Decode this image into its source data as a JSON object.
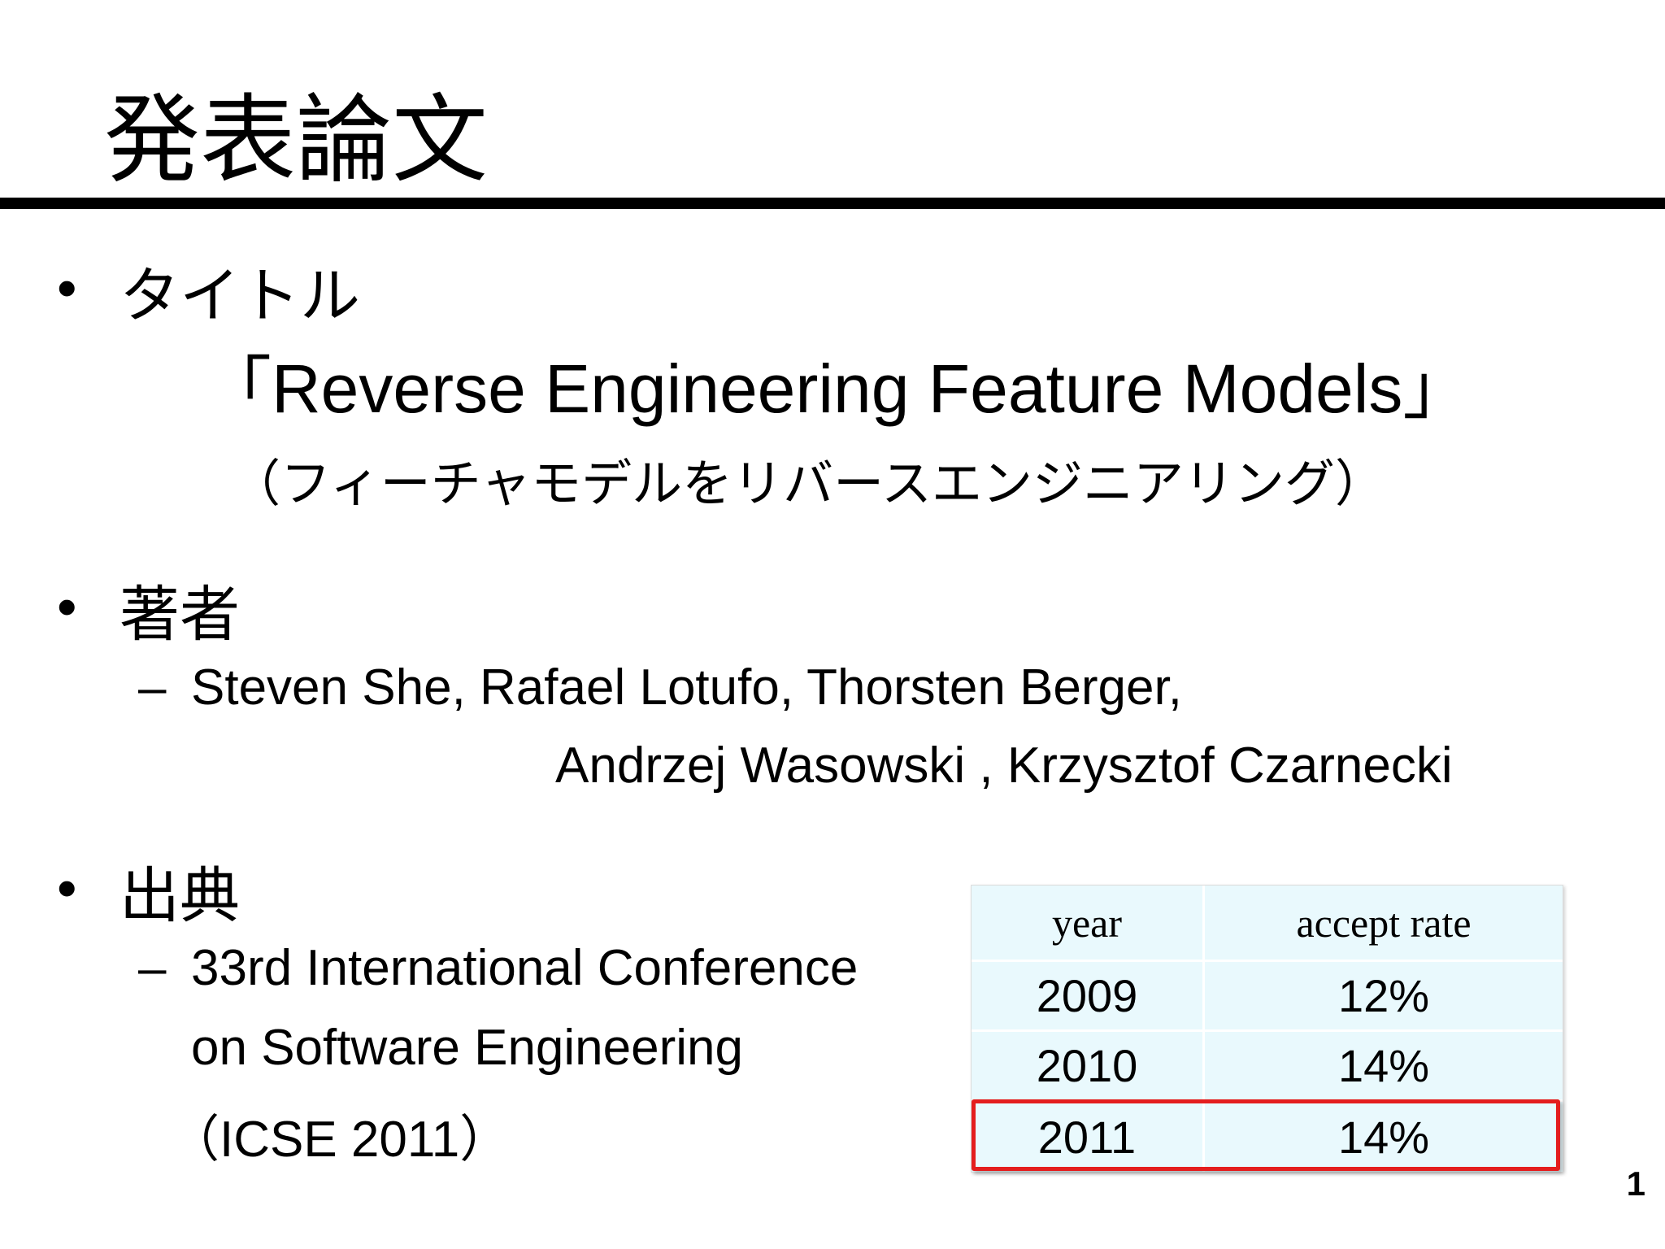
{
  "slide": {
    "title": "発表論文",
    "page_number": "1"
  },
  "sections": {
    "title": {
      "bullet": "•",
      "heading": "タイトル",
      "paper_title": "「Reverse Engineering Feature Models」",
      "paper_title_jp": "（フィーチャモデルをリバースエンジニアリング）"
    },
    "authors": {
      "bullet": "•",
      "heading": "著者",
      "dash": "–",
      "line1": "Steven She, Rafael Lotufo, Thorsten Berger,",
      "line2": "Andrzej Wasowski , Krzysztof Czarnecki"
    },
    "source": {
      "bullet": "•",
      "heading": "出典",
      "dash": "–",
      "line1": "33rd International Conference",
      "line2": "on Software Engineering",
      "line3": "（ICSE 2011）"
    }
  },
  "table": {
    "headers": [
      "year",
      "accept rate"
    ],
    "rows": [
      [
        "2009",
        "12%"
      ],
      [
        "2010",
        "14%"
      ],
      [
        "2011",
        "14%"
      ]
    ],
    "highlighted_row": "2011",
    "highlight_color": "#e41e1e",
    "cell_bg": "#e9f9fd"
  }
}
